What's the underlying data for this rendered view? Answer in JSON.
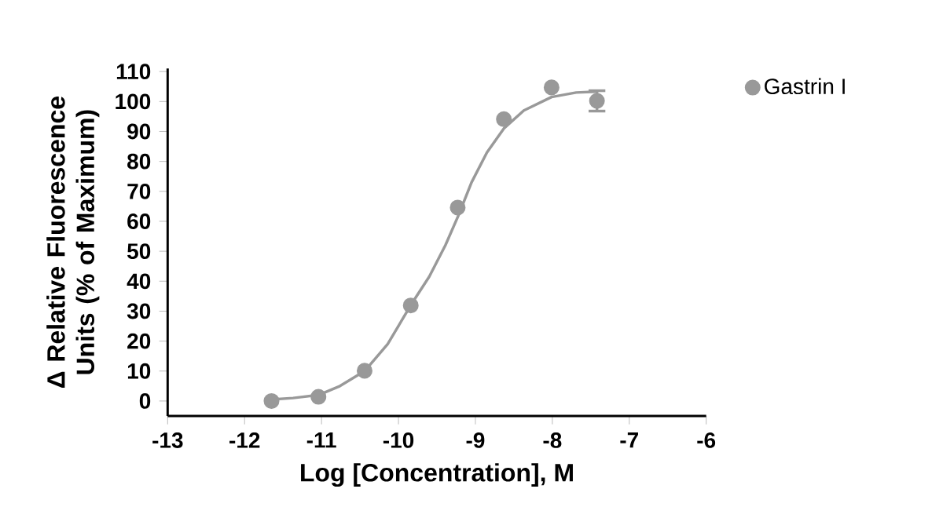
{
  "chart_data": {
    "type": "scatter",
    "xlabel": "Log [Concentration], M",
    "ylabel": "Δ Relative Fluorescence Units (% of Maximum)",
    "xlim": [
      -13,
      -6
    ],
    "xticks": [
      -13,
      -12,
      -11,
      -10,
      -9,
      -8,
      -7,
      -6
    ],
    "ylim": [
      -5,
      111
    ],
    "yticks": [
      0,
      10,
      20,
      30,
      40,
      50,
      60,
      70,
      80,
      90,
      100,
      110
    ],
    "grid": false,
    "legend": "top right",
    "marker": "circle",
    "series": [
      {
        "name": "Gastrin I",
        "color": "#999999",
        "x": [
          -11.65,
          -11.04,
          -10.44,
          -9.84,
          -9.23,
          -8.63,
          -8.01,
          -7.42
        ],
        "values": [
          0,
          1.4,
          10.1,
          31.9,
          64.6,
          94.1,
          104.7,
          100.2
        ],
        "errors": [
          null,
          null,
          null,
          null,
          null,
          null,
          null,
          3.4
        ]
      },
      {
        "type": "line",
        "color": "#999999",
        "marker": "none",
        "line_style": "solid",
        "x": [
          -11.65,
          -11.37,
          -11.04,
          -10.76,
          -10.44,
          -10.14,
          -9.84,
          -9.6,
          -9.39,
          -9.22,
          -9.05,
          -8.85,
          -8.63,
          -8.37,
          -8.01,
          -7.69,
          -7.42
        ],
        "values": [
          0.5,
          1,
          2,
          5,
          10,
          19,
          32,
          41.5,
          52,
          62,
          73,
          83,
          91,
          97,
          101.5,
          103,
          103.3
        ]
      }
    ]
  }
}
